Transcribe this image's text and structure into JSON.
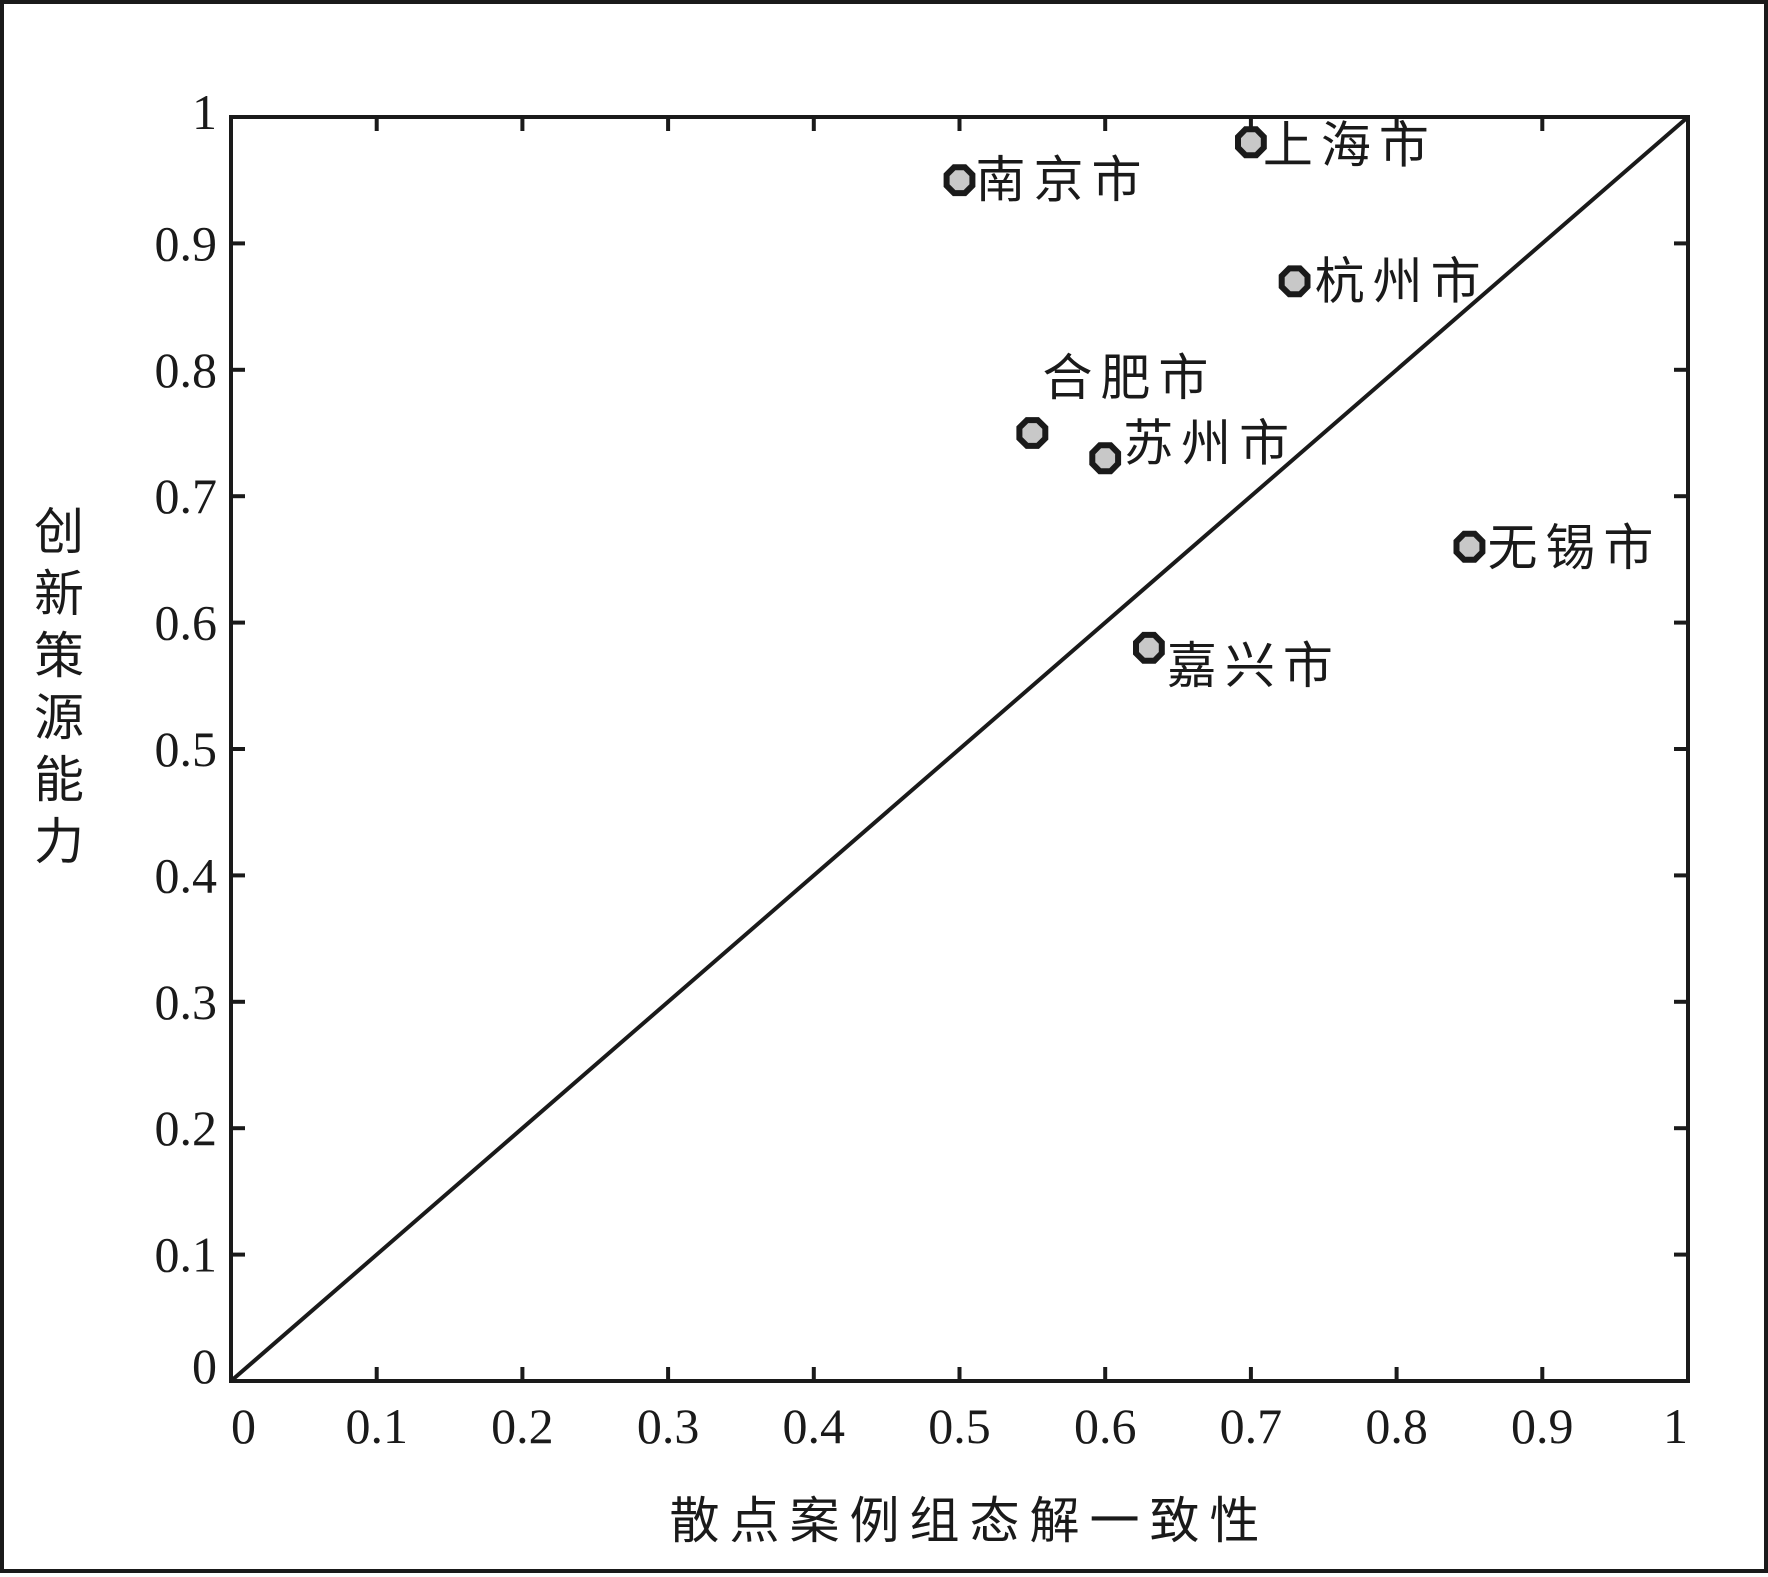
{
  "chart_data": {
    "type": "scatter",
    "title": "",
    "xlabel": "散点案例组态解一致性",
    "ylabel": "创新策源能力",
    "xlim": [
      0,
      1
    ],
    "ylim": [
      0,
      1
    ],
    "x_ticks": [
      "0",
      "0.1",
      "0.2",
      "0.3",
      "0.4",
      "0.5",
      "0.6",
      "0.7",
      "0.8",
      "0.9",
      "1"
    ],
    "y_ticks": [
      "0",
      "0.1",
      "0.2",
      "0.3",
      "0.4",
      "0.5",
      "0.6",
      "0.7",
      "0.8",
      "0.9",
      "1"
    ],
    "grid": false,
    "reference_line": {
      "type": "diagonal",
      "from": [
        0,
        0
      ],
      "to": [
        1,
        1
      ]
    },
    "points": [
      {
        "label": "上海市",
        "x": 0.7,
        "y": 0.98
      },
      {
        "label": "南京市",
        "x": 0.5,
        "y": 0.95
      },
      {
        "label": "杭州市",
        "x": 0.73,
        "y": 0.87
      },
      {
        "label": "合肥市",
        "x": 0.55,
        "y": 0.75
      },
      {
        "label": "苏州市",
        "x": 0.6,
        "y": 0.73
      },
      {
        "label": "无锡市",
        "x": 0.85,
        "y": 0.66
      },
      {
        "label": "嘉兴市",
        "x": 0.63,
        "y": 0.58
      }
    ],
    "colors": {
      "axis": "#1a1a1a",
      "marker_fill": "#c8c8c8",
      "marker_edge": "#1a1a1a"
    }
  }
}
